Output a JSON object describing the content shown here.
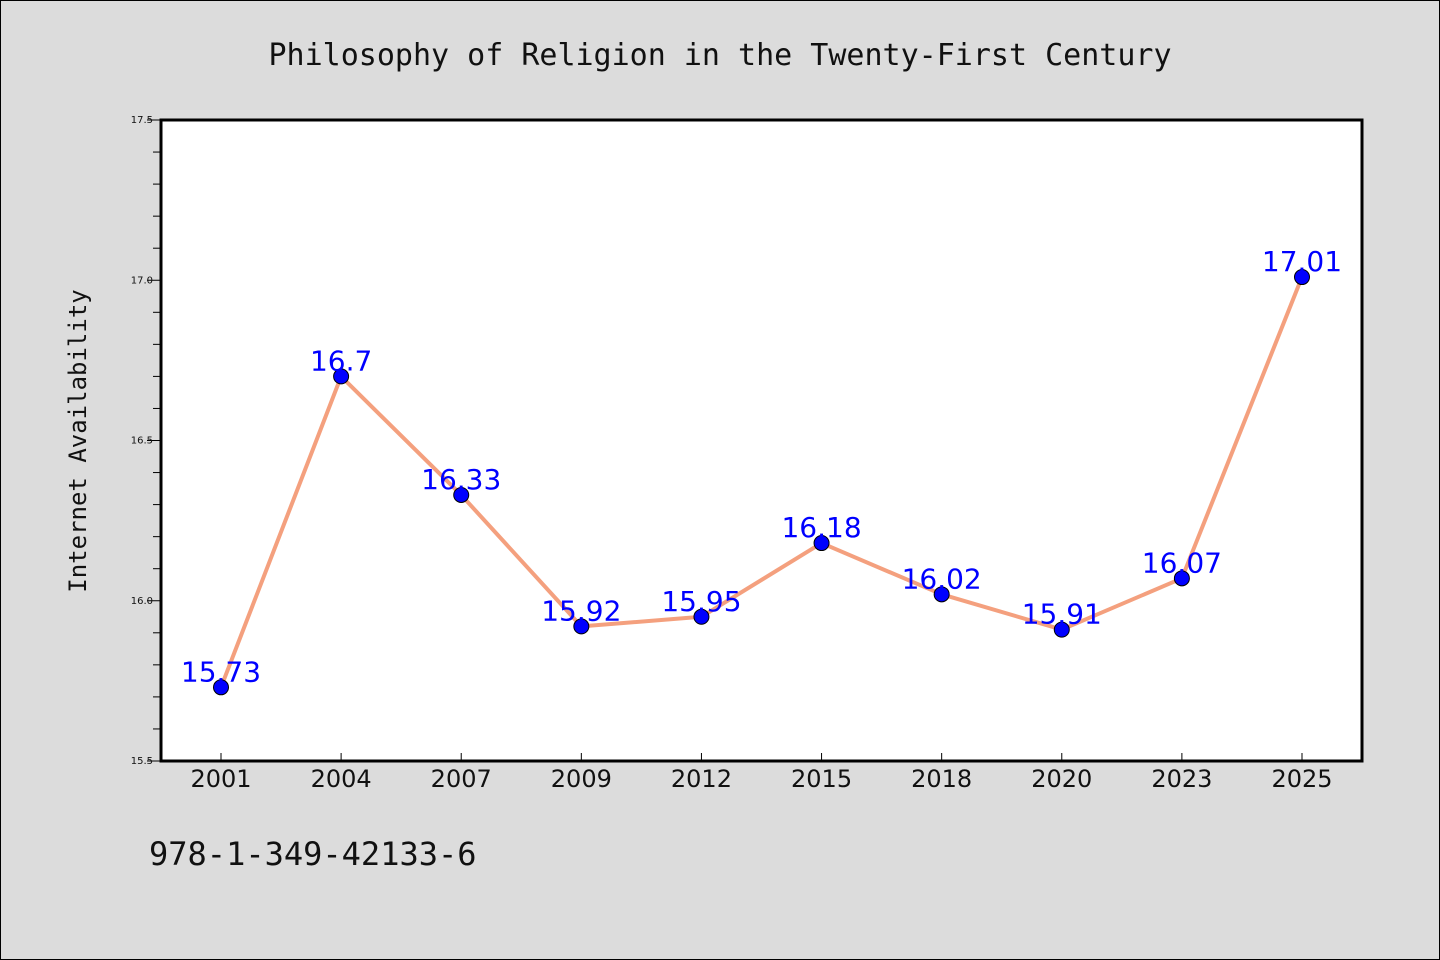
{
  "chart_data": {
    "type": "line",
    "title": "Philosophy of Religion in the Twenty-First Century",
    "xlabel": "",
    "ylabel": "Internet Availability",
    "categories": [
      "2001",
      "2004",
      "2007",
      "2009",
      "2012",
      "2015",
      "2018",
      "2020",
      "2023",
      "2025"
    ],
    "series": [
      {
        "values": [
          15.73,
          16.7,
          16.33,
          15.92,
          15.95,
          16.18,
          16.02,
          15.91,
          16.07,
          17.01
        ]
      }
    ],
    "data_labels": [
      "15.73",
      "16.7",
      "16.33",
      "15.92",
      "15.95",
      "16.18",
      "16.02",
      "15.91",
      "16.07",
      "17.01"
    ],
    "ylim": [
      15.5,
      17.5
    ],
    "yticks": [
      "15.5",
      "16.0",
      "16.5",
      "17.0",
      "17.5"
    ],
    "grid": false,
    "line_color": "#f4a07e",
    "marker_color": "#0000ff",
    "label_color": "#0000ff",
    "background_color": "#dcdcdc",
    "plot_background_color": "#ffffff"
  },
  "footer": {
    "isbn": "978-1-349-42133-6"
  }
}
